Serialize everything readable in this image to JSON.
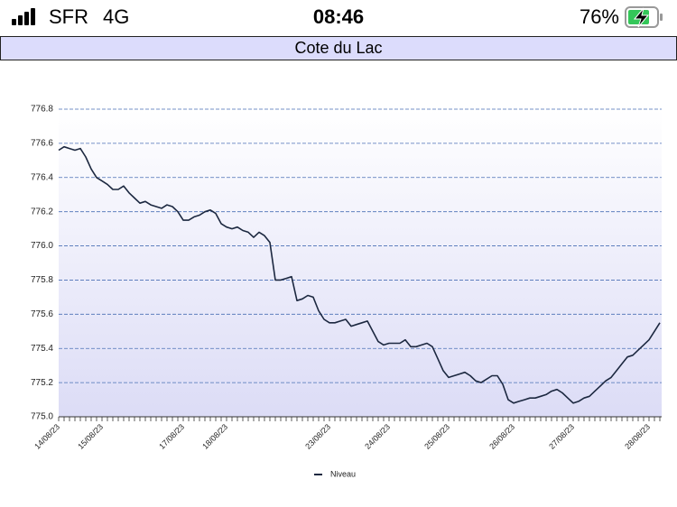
{
  "status_bar": {
    "carrier": "SFR",
    "network": "4G",
    "time": "08:46",
    "battery": "76%"
  },
  "chart_data": {
    "type": "line",
    "title": "Cote du Lac",
    "categories": [
      "14/08/23",
      null,
      null,
      null,
      null,
      null,
      null,
      null,
      "15/08/23",
      null,
      null,
      null,
      null,
      null,
      null,
      null,
      null,
      null,
      null,
      null,
      null,
      null,
      null,
      "17/08/23",
      null,
      null,
      null,
      null,
      null,
      null,
      null,
      "18/08/23",
      null,
      null,
      null,
      null,
      null,
      null,
      null,
      null,
      null,
      null,
      null,
      null,
      null,
      null,
      null,
      null,
      null,
      null,
      "23/08/23",
      null,
      null,
      null,
      null,
      null,
      null,
      null,
      null,
      null,
      null,
      "24/08/23",
      null,
      null,
      null,
      null,
      null,
      null,
      null,
      null,
      null,
      null,
      "25/08/23",
      null,
      null,
      null,
      null,
      null,
      null,
      null,
      null,
      null,
      null,
      null,
      "26/08/23",
      null,
      null,
      null,
      null,
      null,
      null,
      null,
      null,
      null,
      null,
      "27/08/23",
      null,
      null,
      null,
      null,
      null,
      null,
      null,
      null,
      null,
      null,
      null,
      null,
      null,
      "28/08/23",
      null,
      null
    ],
    "series": [
      {
        "name": "Niveau",
        "color": "#1c2840",
        "values": [
          776.56,
          776.58,
          776.57,
          776.56,
          776.57,
          776.52,
          776.45,
          776.4,
          776.38,
          776.36,
          776.33,
          776.33,
          776.35,
          776.31,
          776.28,
          776.25,
          776.26,
          776.24,
          776.23,
          776.22,
          776.24,
          776.23,
          776.2,
          776.15,
          776.15,
          776.17,
          776.18,
          776.2,
          776.21,
          776.19,
          776.13,
          776.11,
          776.1,
          776.11,
          776.09,
          776.08,
          776.05,
          776.08,
          776.06,
          776.02,
          775.8,
          775.8,
          775.81,
          775.82,
          775.68,
          775.69,
          775.71,
          775.7,
          775.62,
          775.57,
          775.55,
          775.55,
          775.56,
          775.57,
          775.53,
          775.54,
          775.55,
          775.56,
          775.5,
          775.44,
          775.42,
          775.43,
          775.43,
          775.43,
          775.45,
          775.41,
          775.41,
          775.42,
          775.43,
          775.41,
          775.34,
          775.27,
          775.23,
          775.24,
          775.25,
          775.26,
          775.24,
          775.21,
          775.2,
          775.22,
          775.24,
          775.24,
          775.19,
          775.1,
          775.08,
          775.09,
          775.1,
          775.11,
          775.11,
          775.12,
          775.13,
          775.15,
          775.16,
          775.14,
          775.11,
          775.08,
          775.09,
          775.11,
          775.12,
          775.15,
          775.18,
          775.21,
          775.23,
          775.27,
          775.31,
          775.35,
          775.36,
          775.39,
          775.42,
          775.45,
          775.5,
          775.55
        ]
      }
    ],
    "ylim": [
      775.0,
      776.8
    ],
    "yticks": [
      {
        "value": 775.0,
        "label": "775.0"
      },
      775.2,
      775.4,
      775.6,
      775.8,
      {
        "value": 776.0,
        "label": "776.0"
      },
      776.2,
      776.4,
      776.6,
      776.8
    ],
    "grid": true,
    "legend": "bottom"
  }
}
